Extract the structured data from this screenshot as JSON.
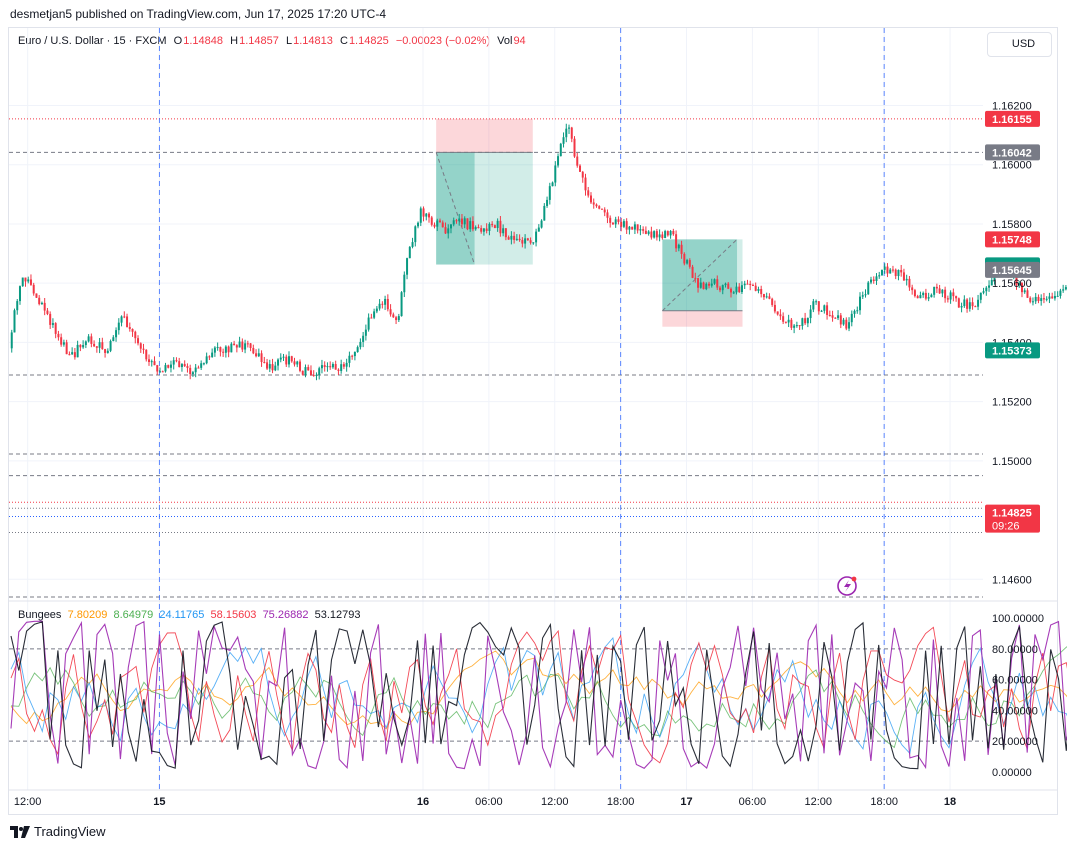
{
  "header": {
    "publisher_line": "desmetjan5 published on TradingView.com, Jun 17, 2025 17:20 UTC-4"
  },
  "legend": {
    "symbol": "Euro / U.S. Dollar · 15 · FXCM",
    "o_label": "O",
    "o": "1.14848",
    "h_label": "H",
    "h": "1.14857",
    "l_label": "L",
    "l": "1.14813",
    "c_label": "C",
    "c": "1.14825",
    "change": "−0.00023 (−0.02%)",
    "vol_label": "Vol",
    "vol": "94"
  },
  "currency_button": "USD",
  "footer": {
    "brand": "TradingView"
  },
  "colors": {
    "up": "#089981",
    "down": "#f23645",
    "purple": "#9c27b0",
    "bg": "#ffffff"
  },
  "chart_data": [
    {
      "type": "candlestick",
      "title": "Euro / U.S. Dollar · 15 · FXCM",
      "y_axis": {
        "range": [
          1.1453,
          1.1632
        ],
        "ticks": [
          "1.14600",
          "1.15000",
          "1.15200",
          "1.15400",
          "1.15600",
          "1.15800",
          "1.16000",
          "1.16200"
        ]
      },
      "x_axis": {
        "ticks": [
          "12:00",
          "15",
          "16",
          "06:00",
          "12:00",
          "18:00",
          "17",
          "06:00",
          "12:00",
          "18:00",
          "18"
        ],
        "tick_hours": [
          -12,
          0,
          24,
          30,
          36,
          42,
          48,
          54,
          60,
          66,
          72
        ],
        "range_hours": [
          -13.7,
          75
        ],
        "session_lines_hours": [
          0,
          42,
          66
        ]
      },
      "price_labels": [
        {
          "text": "1.16155",
          "value": 1.16155,
          "color": "#f23645"
        },
        {
          "text": "1.16042",
          "value": 1.16042,
          "color": "#787b86"
        },
        {
          "text": "1.15748",
          "value": 1.15748,
          "color": "#f23645"
        },
        {
          "text": "1.15660",
          "value": 1.1566,
          "color": "#089981"
        },
        {
          "text": "1.15645",
          "value": 1.15645,
          "color": "#787b86"
        },
        {
          "text": "1.15373",
          "value": 1.15373,
          "color": "#089981"
        },
        {
          "text": "1.14825",
          "value": 1.14825,
          "color": "#f23645",
          "sub": "09:26"
        }
      ],
      "horizontal_levels": [
        {
          "value": 1.16155,
          "style": "dotted",
          "color": "#f23645"
        },
        {
          "value": 1.16042,
          "style": "dashed",
          "color": "#787b86"
        },
        {
          "value": 1.1529,
          "style": "dashed",
          "color": "#787b86"
        },
        {
          "value": 1.15023,
          "style": "dashed",
          "color": "#787b86"
        },
        {
          "value": 1.1495,
          "style": "dashed",
          "color": "#787b86"
        },
        {
          "value": 1.1486,
          "style": "dotted",
          "color": "#f23645"
        },
        {
          "value": 1.1484,
          "style": "dotted",
          "color": "#787b86"
        },
        {
          "value": 1.14812,
          "style": "dotted",
          "color": "#2962ff"
        },
        {
          "value": 1.14758,
          "style": "dotted",
          "color": "#787b86"
        },
        {
          "value": 1.1454,
          "style": "dashed",
          "color": "#787b86"
        }
      ],
      "positions": [
        {
          "type": "short",
          "start_hours": 25.2,
          "end_hours": 34.0,
          "target_end_hours": 28.7,
          "entry": 1.16042,
          "stop": 1.16155,
          "target": 1.15663
        },
        {
          "type": "long",
          "start_hours": 45.8,
          "end_hours": 53.1,
          "target_end_hours": 52.6,
          "entry": 1.15507,
          "stop": 1.15453,
          "target": 1.15748
        }
      ],
      "series": [
        {
          "name": "close",
          "anchors": [
            [
              -13.7,
              1.1538
            ],
            [
              -12.6,
              1.1563
            ],
            [
              -11.2,
              1.1556
            ],
            [
              -9.7,
              1.1546
            ],
            [
              -8.2,
              1.1535
            ],
            [
              -6.3,
              1.1541
            ],
            [
              -4.8,
              1.1537
            ],
            [
              -3.3,
              1.1549
            ],
            [
              -0.3,
              1.153
            ],
            [
              1.2,
              1.1533
            ],
            [
              3.2,
              1.153
            ],
            [
              4.5,
              1.1536
            ],
            [
              6.2,
              1.1538
            ],
            [
              7.3,
              1.1539
            ],
            [
              8.7,
              1.1537
            ],
            [
              10.0,
              1.1532
            ],
            [
              11.9,
              1.1534
            ],
            [
              13.2,
              1.153
            ],
            [
              15.1,
              1.1531
            ],
            [
              16.5,
              1.1532
            ],
            [
              17.4,
              1.1534
            ],
            [
              19.3,
              1.1549
            ],
            [
              20.3,
              1.1554
            ],
            [
              21.7,
              1.1548
            ],
            [
              22.7,
              1.157
            ],
            [
              23.8,
              1.1584
            ],
            [
              25.8,
              1.1578
            ],
            [
              27.6,
              1.1581
            ],
            [
              29.4,
              1.1577
            ],
            [
              30.6,
              1.158
            ],
            [
              32.5,
              1.1574
            ],
            [
              33.9,
              1.1573
            ],
            [
              35.0,
              1.1584
            ],
            [
              35.9,
              1.1596
            ],
            [
              36.5,
              1.1606
            ],
            [
              37.3,
              1.1613
            ],
            [
              38.1,
              1.1598
            ],
            [
              39.4,
              1.1588
            ],
            [
              41.6,
              1.158
            ],
            [
              44.4,
              1.1577
            ],
            [
              46.7,
              1.1576
            ],
            [
              48.1,
              1.1566
            ],
            [
              49.4,
              1.1558
            ],
            [
              50.6,
              1.156
            ],
            [
              52.0,
              1.1558
            ],
            [
              53.5,
              1.1559
            ],
            [
              55.5,
              1.1555
            ],
            [
              56.8,
              1.1547
            ],
            [
              58.1,
              1.1544
            ],
            [
              59.7,
              1.1553
            ],
            [
              61.1,
              1.155
            ],
            [
              62.6,
              1.1546
            ],
            [
              64.1,
              1.1556
            ],
            [
              65.2,
              1.1563
            ],
            [
              66.8,
              1.1565
            ],
            [
              68.0,
              1.156
            ],
            [
              69.3,
              1.1555
            ],
            [
              70.5,
              1.1558
            ],
            [
              71.8,
              1.1556
            ],
            [
              73.0,
              1.1553
            ],
            [
              74.4,
              1.1552
            ],
            [
              75.4,
              1.156
            ],
            [
              76.6,
              1.1568
            ],
            [
              77.6,
              1.1563
            ],
            [
              78.5,
              1.1559
            ],
            [
              79.4,
              1.1554
            ],
            [
              81.1,
              1.1554
            ],
            [
              82.6,
              1.1558
            ],
            [
              83.8,
              1.1565
            ],
            [
              85.5,
              1.157
            ],
            [
              86.4,
              1.1566
            ],
            [
              87.3,
              1.1562
            ],
            [
              88.3,
              1.156
            ],
            [
              89.0,
              1.154
            ],
            [
              89.6,
              1.1526
            ],
            [
              90.5,
              1.151
            ],
            [
              91.1,
              1.1522
            ],
            [
              92.3,
              1.153
            ],
            [
              93.3,
              1.1536
            ],
            [
              94.3,
              1.1525
            ],
            [
              95.5,
              1.1506
            ],
            [
              96.7,
              1.15
            ],
            [
              97.6,
              1.1493
            ],
            [
              98.4,
              1.1484
            ],
            [
              99.9,
              1.148
            ],
            [
              101.7,
              1.1481
            ],
            [
              103.2,
              1.1476
            ],
            [
              105.0,
              1.1482
            ],
            [
              106.3,
              1.1476
            ],
            [
              107.5,
              1.148
            ]
          ]
        }
      ]
    },
    {
      "type": "line",
      "title": "Bungees",
      "y_axis": {
        "range": [
          -4,
          104
        ],
        "ticks": [
          "0.00000",
          "20.00000",
          "40.00000",
          "60.00000",
          "80.00000",
          "100.00000"
        ]
      },
      "levels": [
        20,
        80
      ],
      "series": [
        {
          "name": "7.80209",
          "color": "#ff9800",
          "last": 7.80209
        },
        {
          "name": "8.64979",
          "color": "#4caf50",
          "last": 8.64979
        },
        {
          "name": "24.11765",
          "color": "#2196f3",
          "last": 24.11765
        },
        {
          "name": "58.15603",
          "color": "#f23645",
          "last": 58.15603
        },
        {
          "name": "75.26882",
          "color": "#9c27b0",
          "last": 75.26882
        },
        {
          "name": "53.12793",
          "color": "#131722",
          "last": 53.12793
        }
      ]
    }
  ]
}
